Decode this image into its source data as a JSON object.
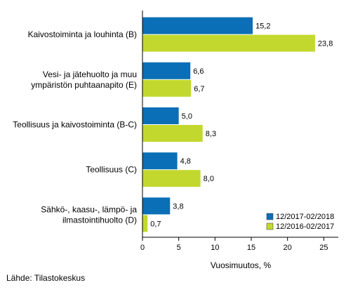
{
  "chart_data": {
    "type": "bar",
    "orientation": "horizontal",
    "categories": [
      [
        "Kaivostoiminta ja louhinta (B)"
      ],
      [
        "Vesi- ja jätehuolto ja muu",
        "ympäristön puhtaanapito (E)"
      ],
      [
        "Teollisuus ja kaivostoiminta (B-C)"
      ],
      [
        "Teollisuus (C)"
      ],
      [
        "Sähkö-, kaasu-, lämpö- ja",
        "ilmastointihuolto (D)"
      ]
    ],
    "series": [
      {
        "name": "12/2017-02/2018",
        "color": "#0a6fb6",
        "values": [
          15.2,
          6.6,
          5.0,
          4.8,
          3.8
        ],
        "labels": [
          "15,2",
          "6,6",
          "5,0",
          "4,8",
          "3,8"
        ]
      },
      {
        "name": "12/2016-02/2017",
        "color": "#c2d82e",
        "values": [
          23.8,
          6.7,
          8.3,
          8.0,
          0.7
        ],
        "labels": [
          "23,8",
          "6,7",
          "8,3",
          "8,0",
          "0,7"
        ]
      }
    ],
    "xlabel": "Vuosimuutos, %",
    "xlim": [
      0,
      27
    ],
    "xticks": [
      0,
      5,
      10,
      15,
      20,
      25
    ],
    "grid": false,
    "legend_position": "bottom-right"
  },
  "source": "Lähde: Tilastokeskus"
}
